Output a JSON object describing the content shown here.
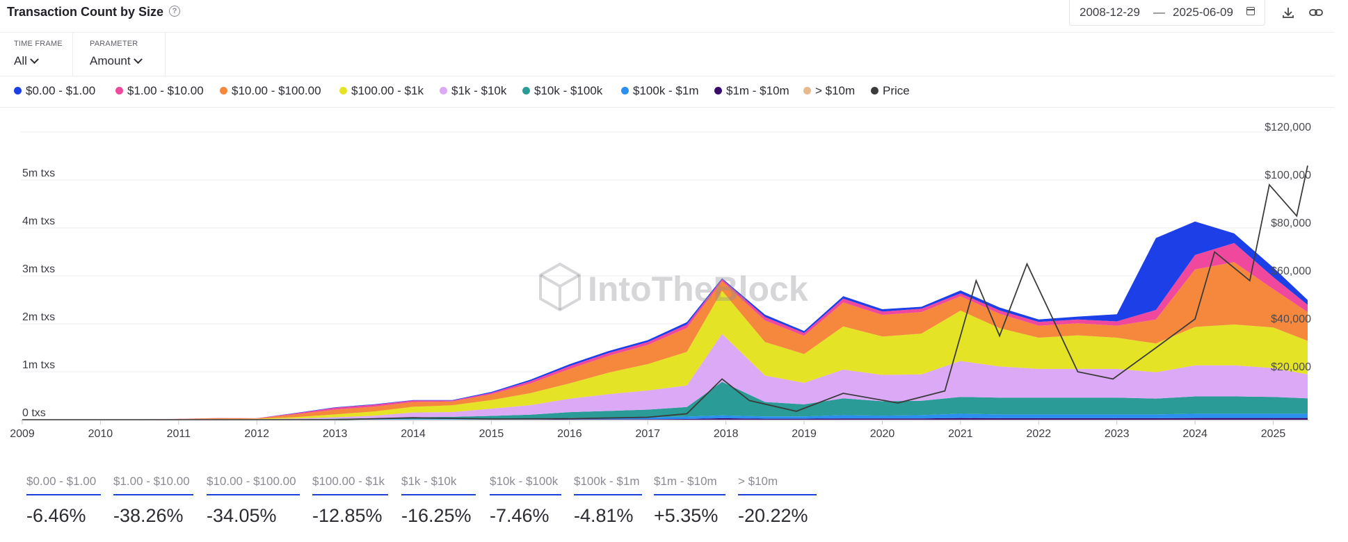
{
  "header": {
    "title": "Transaction Count by Size",
    "date_start": "2008-12-29",
    "date_sep": "—",
    "date_end": "2025-06-09"
  },
  "controls": {
    "timeframe_label": "TIME FRAME",
    "timeframe_value": "All",
    "parameter_label": "PARAMETER",
    "parameter_value": "Amount"
  },
  "legend": [
    {
      "label": "$0.00 - $1.00",
      "color": "#1d3fe8"
    },
    {
      "label": "$1.00 - $10.00",
      "color": "#f0489c"
    },
    {
      "label": "$10.00 - $100.00",
      "color": "#f5883c"
    },
    {
      "label": "$100.00 - $1k",
      "color": "#e4e325"
    },
    {
      "label": "$1k - $10k",
      "color": "#dba9f5"
    },
    {
      "label": "$10k - $100k",
      "color": "#2a9b96"
    },
    {
      "label": "$100k - $1m",
      "color": "#2b8ff0"
    },
    {
      "label": "$1m - $10m",
      "color": "#3a0a6b"
    },
    {
      "label": "> $10m",
      "color": "#e8b98c"
    },
    {
      "label": "Price",
      "color": "#3b3b3b"
    }
  ],
  "chart_data": {
    "type": "area",
    "stacked": true,
    "title": "Transaction Count by Size",
    "x_label": "",
    "y_left_ticks": [
      "0 txs",
      "1m txs",
      "2m txs",
      "3m txs",
      "4m txs",
      "5m txs"
    ],
    "y_right_ticks": [
      "$20,000",
      "$40,000",
      "$60,000",
      "$80,000",
      "$100,000",
      "$120,000"
    ],
    "ylim_left": [
      0,
      6000000
    ],
    "ylim_right": [
      0,
      120000
    ],
    "x_tick_labels": [
      "2009",
      "2010",
      "2011",
      "2012",
      "2013",
      "2014",
      "2015",
      "2016",
      "2017",
      "2018",
      "2019",
      "2020",
      "2021",
      "2022",
      "2023",
      "2024",
      "2025"
    ],
    "x": [
      2009.0,
      2010.0,
      2011.0,
      2011.5,
      2012.0,
      2012.5,
      2013.0,
      2013.5,
      2014.0,
      2014.5,
      2015.0,
      2015.5,
      2016.0,
      2016.5,
      2017.0,
      2017.5,
      2017.95,
      2018.5,
      2019.0,
      2019.5,
      2020.0,
      2020.5,
      2021.0,
      2021.5,
      2022.0,
      2022.5,
      2023.0,
      2023.5,
      2024.0,
      2024.5,
      2025.0,
      2025.44
    ],
    "series": [
      {
        "name": "> $10m",
        "values": [
          0,
          0,
          0,
          0,
          0,
          0,
          0,
          0,
          0,
          0,
          0,
          0,
          0,
          0,
          0,
          0,
          0,
          0,
          0,
          0,
          0,
          0,
          0,
          0,
          0,
          0,
          0,
          0,
          0,
          0,
          0,
          0
        ]
      },
      {
        "name": "$1m - $10m",
        "values": [
          0,
          0,
          0,
          0,
          0,
          0,
          0,
          0,
          0,
          0,
          5000,
          5000,
          8000,
          8000,
          10000,
          15000,
          30000,
          20000,
          20000,
          25000,
          25000,
          25000,
          35000,
          30000,
          30000,
          30000,
          30000,
          30000,
          35000,
          35000,
          35000,
          35000
        ]
      },
      {
        "name": "$100k - $1m",
        "values": [
          0,
          0,
          0,
          0,
          0,
          2000,
          5000,
          8000,
          10000,
          10000,
          15000,
          20000,
          30000,
          35000,
          40000,
          50000,
          60000,
          50000,
          50000,
          70000,
          60000,
          70000,
          90000,
          80000,
          80000,
          80000,
          80000,
          80000,
          90000,
          90000,
          90000,
          90000
        ]
      },
      {
        "name": "$10k - $100k",
        "values": [
          0,
          0,
          0,
          0,
          3000,
          8000,
          15000,
          25000,
          40000,
          50000,
          60000,
          80000,
          120000,
          140000,
          160000,
          200000,
          700000,
          300000,
          250000,
          350000,
          300000,
          300000,
          350000,
          350000,
          350000,
          350000,
          350000,
          330000,
          360000,
          360000,
          350000,
          320000
        ]
      },
      {
        "name": "$1k - $10k",
        "values": [
          0,
          0,
          0,
          2000,
          5000,
          15000,
          30000,
          50000,
          100000,
          100000,
          150000,
          200000,
          280000,
          350000,
          400000,
          450000,
          1000000,
          550000,
          450000,
          600000,
          550000,
          550000,
          750000,
          650000,
          600000,
          600000,
          600000,
          550000,
          650000,
          650000,
          600000,
          500000
        ]
      },
      {
        "name": "$100.00 - $1k",
        "values": [
          0,
          0,
          5000,
          8000,
          10000,
          30000,
          60000,
          90000,
          120000,
          140000,
          180000,
          250000,
          320000,
          450000,
          550000,
          700000,
          900000,
          700000,
          600000,
          900000,
          800000,
          850000,
          1050000,
          800000,
          650000,
          700000,
          650000,
          600000,
          800000,
          850000,
          850000,
          700000
        ]
      },
      {
        "name": "$10.00 - $100.00",
        "values": [
          0,
          0,
          10000,
          20000,
          10000,
          60000,
          100000,
          100000,
          100000,
          80000,
          120000,
          200000,
          300000,
          350000,
          400000,
          500000,
          200000,
          450000,
          380000,
          500000,
          450000,
          450000,
          300000,
          300000,
          250000,
          250000,
          250000,
          500000,
          1200000,
          1300000,
          800000,
          600000
        ]
      },
      {
        "name": "$1.00 - $10.00",
        "values": [
          0,
          0,
          2000,
          5000,
          2000,
          20000,
          40000,
          40000,
          30000,
          20000,
          30000,
          50000,
          60000,
          60000,
          60000,
          70000,
          40000,
          70000,
          60000,
          80000,
          70000,
          70000,
          60000,
          70000,
          80000,
          80000,
          90000,
          200000,
          300000,
          400000,
          250000,
          150000
        ]
      },
      {
        "name": "$0.00 - $1.00",
        "values": [
          0,
          0,
          0,
          0,
          0,
          5000,
          10000,
          10000,
          10000,
          10000,
          20000,
          30000,
          40000,
          40000,
          40000,
          50000,
          20000,
          50000,
          40000,
          50000,
          50000,
          40000,
          60000,
          60000,
          50000,
          60000,
          150000,
          1500000,
          700000,
          200000,
          200000,
          100000
        ]
      }
    ],
    "price": {
      "name": "Price",
      "x": [
        2009.0,
        2011.0,
        2012.0,
        2013.0,
        2014.0,
        2015.0,
        2016.0,
        2017.0,
        2017.5,
        2017.95,
        2018.3,
        2018.9,
        2019.5,
        2020.2,
        2020.8,
        2021.2,
        2021.5,
        2021.85,
        2022.5,
        2022.95,
        2023.5,
        2024.0,
        2024.25,
        2024.7,
        2024.95,
        2025.3,
        2025.44
      ],
      "values": [
        0,
        1,
        5,
        13,
        800,
        300,
        430,
        1000,
        2500,
        17000,
        8000,
        3500,
        11000,
        7000,
        12000,
        58000,
        35000,
        65000,
        20000,
        17000,
        30000,
        42000,
        70000,
        58000,
        98000,
        85000,
        106000
      ]
    }
  },
  "stats": [
    {
      "label": "$0.00 - $1.00",
      "value": "-6.46%"
    },
    {
      "label": "$1.00 - $10.00",
      "value": "-38.26%"
    },
    {
      "label": "$10.00 - $100.00",
      "value": "-34.05%"
    },
    {
      "label": "$100.00 - $1k",
      "value": "-12.85%"
    },
    {
      "label": "$1k - $10k",
      "value": "-16.25%"
    },
    {
      "label": "$10k - $100k",
      "value": "-7.46%"
    },
    {
      "label": "$100k - $1m",
      "value": "-4.81%"
    },
    {
      "label": "$1m - $10m",
      "value": "+5.35%"
    },
    {
      "label": "> $10m",
      "value": "-20.22%"
    }
  ],
  "watermark": "IntoTheBlock"
}
